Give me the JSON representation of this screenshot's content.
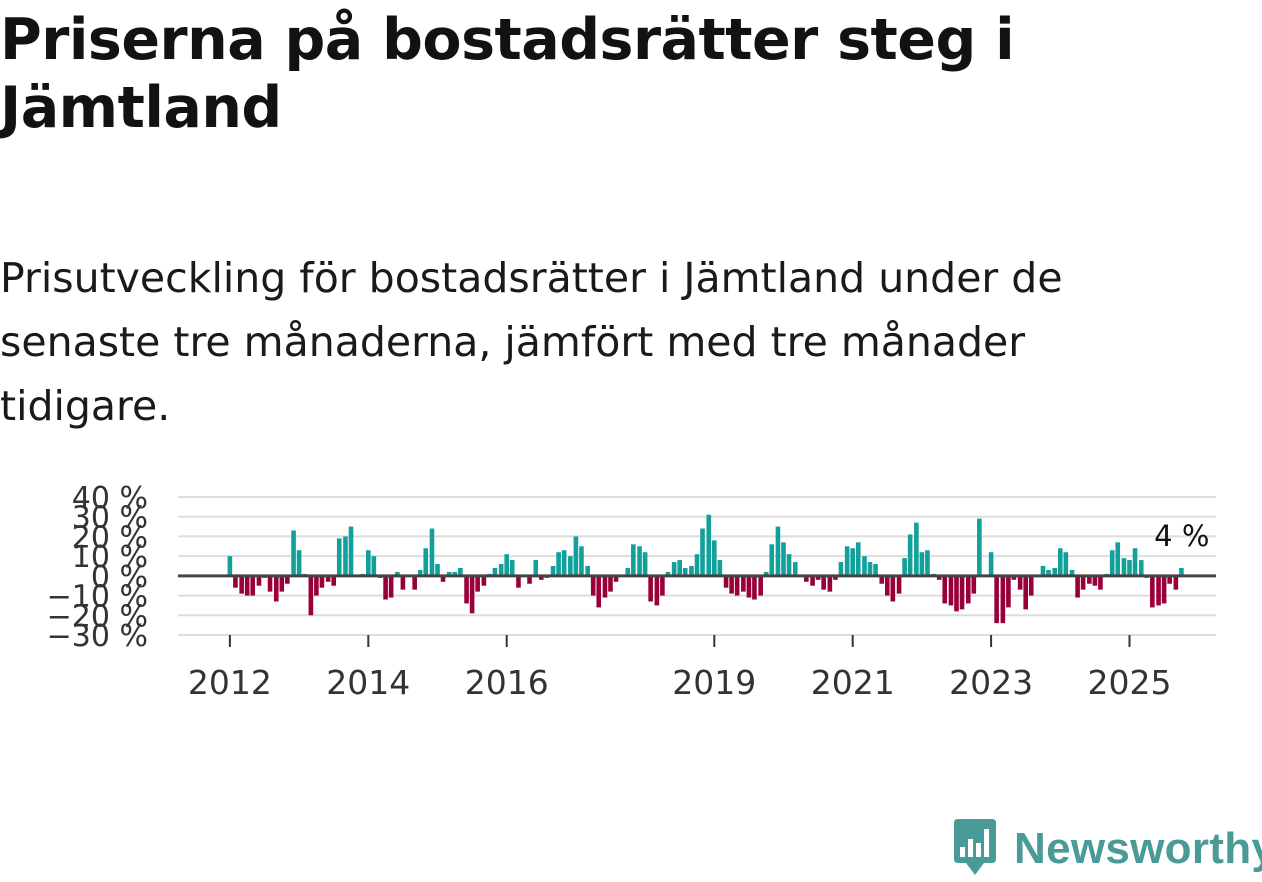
{
  "title": "Priserna på bostadsrätter steg i Jämtland",
  "subtitle": "Prisutveckling för bostadsrätter i Jämtland under de senaste tre månaderna, jämfört med tre månader tidigare.",
  "brand": {
    "name": "Newsworthy",
    "color": "#4a9a98",
    "icon": "newsworthy-logo-icon"
  },
  "colors": {
    "positive": "#12a19a",
    "negative": "#990039",
    "zero_line": "#444444",
    "grid": "#dddddd"
  },
  "chart_data": {
    "type": "bar",
    "title": "",
    "xlabel": "",
    "ylabel": "",
    "ylim": [
      -30,
      40
    ],
    "y_ticks": [
      40,
      30,
      20,
      10,
      0,
      -10,
      -20,
      -30
    ],
    "y_tick_labels": [
      "40 %",
      "30 %",
      "20 %",
      "10 %",
      "0 %",
      "−10 %",
      "−20 %",
      "−30 %"
    ],
    "x_range": [
      2011.25,
      2026.25
    ],
    "x_ticks": [
      2012,
      2014,
      2016,
      2019,
      2021,
      2023,
      2025
    ],
    "x_tick_labels": [
      "2012",
      "2014",
      "2016",
      "2019",
      "2021",
      "2023",
      "2025"
    ],
    "annotation": {
      "text": "4 %",
      "x": 2025.75,
      "y": 4
    },
    "points": [
      [
        2012.0,
        10
      ],
      [
        2012.08,
        -6
      ],
      [
        2012.17,
        -9
      ],
      [
        2012.25,
        -10
      ],
      [
        2012.33,
        -10
      ],
      [
        2012.42,
        -5
      ],
      [
        2012.5,
        -1
      ],
      [
        2012.58,
        -8
      ],
      [
        2012.67,
        -13
      ],
      [
        2012.75,
        -8
      ],
      [
        2012.83,
        -4
      ],
      [
        2012.92,
        23
      ],
      [
        2013.0,
        13
      ],
      [
        2013.08,
        1
      ],
      [
        2013.17,
        -20
      ],
      [
        2013.25,
        -10
      ],
      [
        2013.33,
        -6
      ],
      [
        2013.42,
        -3
      ],
      [
        2013.5,
        -5
      ],
      [
        2013.58,
        19
      ],
      [
        2013.67,
        20
      ],
      [
        2013.75,
        25
      ],
      [
        2013.83,
        0
      ],
      [
        2013.92,
        1
      ],
      [
        2014.0,
        13
      ],
      [
        2014.08,
        10
      ],
      [
        2014.17,
        -1
      ],
      [
        2014.25,
        -12
      ],
      [
        2014.33,
        -11
      ],
      [
        2014.42,
        2
      ],
      [
        2014.5,
        -7
      ],
      [
        2014.58,
        0
      ],
      [
        2014.67,
        -7
      ],
      [
        2014.75,
        3
      ],
      [
        2014.83,
        14
      ],
      [
        2014.92,
        24
      ],
      [
        2015.0,
        6
      ],
      [
        2015.08,
        -3
      ],
      [
        2015.17,
        2
      ],
      [
        2015.25,
        2
      ],
      [
        2015.33,
        4
      ],
      [
        2015.42,
        -14
      ],
      [
        2015.5,
        -19
      ],
      [
        2015.58,
        -8
      ],
      [
        2015.67,
        -5
      ],
      [
        2015.75,
        1
      ],
      [
        2015.83,
        4
      ],
      [
        2015.92,
        6
      ],
      [
        2016.0,
        11
      ],
      [
        2016.08,
        8
      ],
      [
        2016.17,
        -6
      ],
      [
        2016.25,
        0
      ],
      [
        2016.33,
        -4
      ],
      [
        2016.42,
        8
      ],
      [
        2016.5,
        -2
      ],
      [
        2016.58,
        -1
      ],
      [
        2016.67,
        5
      ],
      [
        2016.75,
        12
      ],
      [
        2016.83,
        13
      ],
      [
        2016.92,
        10
      ],
      [
        2017.0,
        20
      ],
      [
        2017.08,
        15
      ],
      [
        2017.17,
        5
      ],
      [
        2017.25,
        -10
      ],
      [
        2017.33,
        -16
      ],
      [
        2017.42,
        -11
      ],
      [
        2017.5,
        -8
      ],
      [
        2017.58,
        -3
      ],
      [
        2017.67,
        0
      ],
      [
        2017.75,
        4
      ],
      [
        2017.83,
        16
      ],
      [
        2017.92,
        15
      ],
      [
        2018.0,
        12
      ],
      [
        2018.08,
        -13
      ],
      [
        2018.17,
        -15
      ],
      [
        2018.25,
        -10
      ],
      [
        2018.33,
        2
      ],
      [
        2018.42,
        7
      ],
      [
        2018.5,
        8
      ],
      [
        2018.58,
        4
      ],
      [
        2018.67,
        5
      ],
      [
        2018.75,
        11
      ],
      [
        2018.83,
        24
      ],
      [
        2018.92,
        31
      ],
      [
        2019.0,
        18
      ],
      [
        2019.08,
        8
      ],
      [
        2019.17,
        -6
      ],
      [
        2019.25,
        -9
      ],
      [
        2019.33,
        -10
      ],
      [
        2019.42,
        -8
      ],
      [
        2019.5,
        -11
      ],
      [
        2019.58,
        -12
      ],
      [
        2019.67,
        -10
      ],
      [
        2019.75,
        2
      ],
      [
        2019.83,
        16
      ],
      [
        2019.92,
        25
      ],
      [
        2020.0,
        17
      ],
      [
        2020.08,
        11
      ],
      [
        2020.17,
        7
      ],
      [
        2020.25,
        0
      ],
      [
        2020.33,
        -3
      ],
      [
        2020.42,
        -5
      ],
      [
        2020.5,
        -2
      ],
      [
        2020.58,
        -7
      ],
      [
        2020.67,
        -8
      ],
      [
        2020.75,
        -2
      ],
      [
        2020.83,
        7
      ],
      [
        2020.92,
        15
      ],
      [
        2021.0,
        14
      ],
      [
        2021.08,
        17
      ],
      [
        2021.17,
        10
      ],
      [
        2021.25,
        7
      ],
      [
        2021.33,
        6
      ],
      [
        2021.42,
        -4
      ],
      [
        2021.5,
        -10
      ],
      [
        2021.58,
        -13
      ],
      [
        2021.67,
        -9
      ],
      [
        2021.75,
        9
      ],
      [
        2021.83,
        21
      ],
      [
        2021.92,
        27
      ],
      [
        2022.0,
        12
      ],
      [
        2022.08,
        13
      ],
      [
        2022.17,
        1
      ],
      [
        2022.25,
        -2
      ],
      [
        2022.33,
        -14
      ],
      [
        2022.42,
        -15
      ],
      [
        2022.5,
        -18
      ],
      [
        2022.58,
        -17
      ],
      [
        2022.67,
        -14
      ],
      [
        2022.75,
        -9
      ],
      [
        2022.83,
        29
      ],
      [
        2022.92,
        0
      ],
      [
        2023.0,
        12
      ],
      [
        2023.08,
        -24
      ],
      [
        2023.17,
        -24
      ],
      [
        2023.25,
        -16
      ],
      [
        2023.33,
        -2
      ],
      [
        2023.42,
        -7
      ],
      [
        2023.5,
        -17
      ],
      [
        2023.58,
        -10
      ],
      [
        2023.67,
        0
      ],
      [
        2023.75,
        5
      ],
      [
        2023.83,
        3
      ],
      [
        2023.92,
        4
      ],
      [
        2024.0,
        14
      ],
      [
        2024.08,
        12
      ],
      [
        2024.17,
        3
      ],
      [
        2024.25,
        -11
      ],
      [
        2024.33,
        -7
      ],
      [
        2024.42,
        -4
      ],
      [
        2024.5,
        -5
      ],
      [
        2024.58,
        -7
      ],
      [
        2024.67,
        1
      ],
      [
        2024.75,
        13
      ],
      [
        2024.83,
        17
      ],
      [
        2024.92,
        9
      ],
      [
        2025.0,
        8
      ],
      [
        2025.08,
        14
      ],
      [
        2025.17,
        8
      ],
      [
        2025.25,
        -1
      ],
      [
        2025.33,
        -16
      ],
      [
        2025.42,
        -15
      ],
      [
        2025.5,
        -14
      ],
      [
        2025.58,
        -4
      ],
      [
        2025.67,
        -7
      ],
      [
        2025.75,
        4
      ]
    ]
  }
}
